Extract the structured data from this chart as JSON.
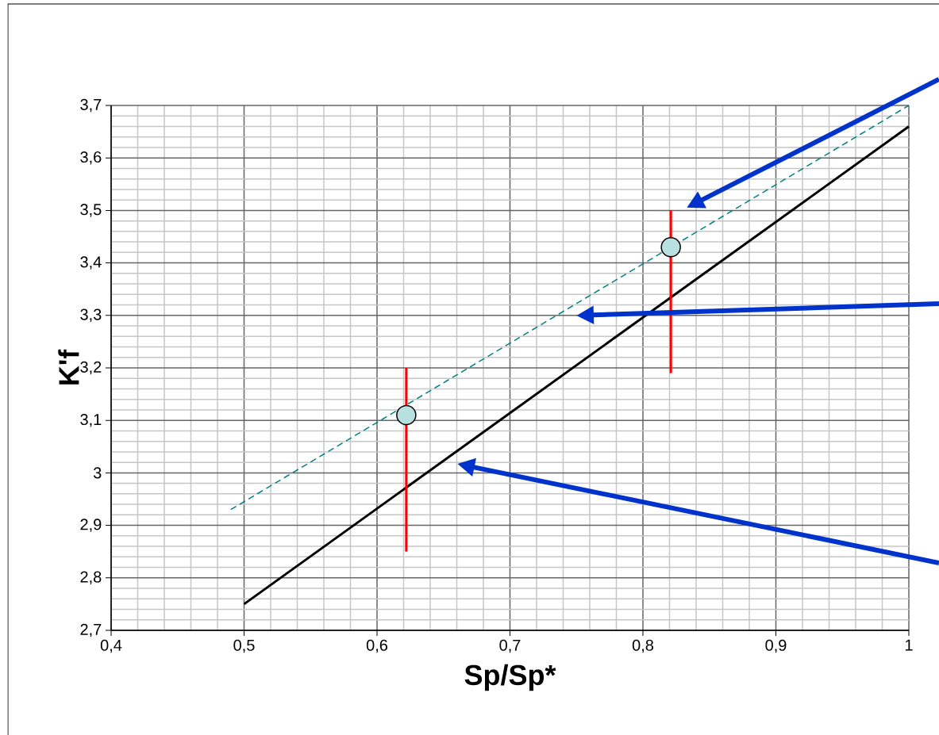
{
  "chart_data": {
    "type": "line",
    "xlabel": "Sp/Sp*",
    "ylabel": "K'f",
    "xlim": [
      0.4,
      1.0
    ],
    "ylim": [
      2.7,
      3.7
    ],
    "xticks": [
      {
        "value": 0.4,
        "label": "0,4"
      },
      {
        "value": 0.5,
        "label": "0,5"
      },
      {
        "value": 0.6,
        "label": "0,6"
      },
      {
        "value": 0.7,
        "label": "0,7"
      },
      {
        "value": 0.8,
        "label": "0,8"
      },
      {
        "value": 0.9,
        "label": "0,9"
      },
      1
    ],
    "yticks": [
      {
        "value": 2.7,
        "label": "2,7"
      },
      {
        "value": 2.8,
        "label": "2,8"
      },
      {
        "value": 2.9,
        "label": "2,9"
      },
      3,
      {
        "value": 3.1,
        "label": "3,1"
      },
      {
        "value": 3.2,
        "label": "3,2"
      },
      {
        "value": 3.3,
        "label": "3,3"
      },
      {
        "value": 3.4,
        "label": "3,4"
      },
      {
        "value": 3.5,
        "label": "3,5"
      },
      {
        "value": 3.6,
        "label": "3,6"
      },
      {
        "value": 3.7,
        "label": "3,7"
      }
    ],
    "grid": true,
    "series": [
      {
        "type": "line",
        "color": "#000000",
        "marker": "none",
        "x": [
          0.5,
          1.0
        ],
        "values": [
          2.75,
          3.66
        ]
      },
      {
        "type": "line",
        "color": "#008080",
        "marker": "none",
        "line_style": "dashed",
        "x": [
          0.49,
          1.0
        ],
        "values": [
          2.93,
          3.7
        ]
      },
      {
        "type": "scatter",
        "color": "#b8e0e0",
        "marker": "circle",
        "x": [
          0.622,
          0.821
        ],
        "values": [
          3.11,
          3.43
        ],
        "errors": [
          [
            2.85,
            3.2
          ],
          [
            3.19,
            3.5
          ]
        ]
      }
    ]
  }
}
